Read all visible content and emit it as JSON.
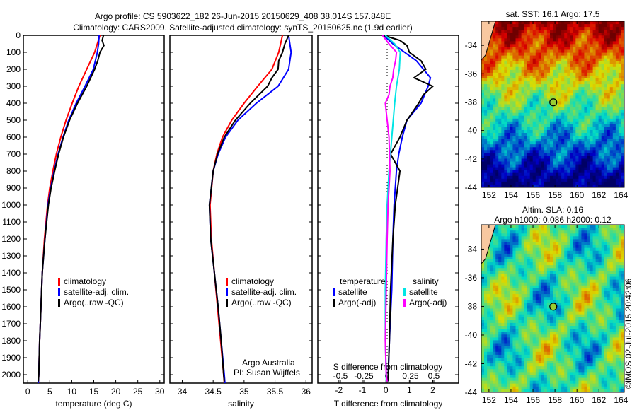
{
  "title": {
    "line1": "Argo profile: CS 5903622_182 26-Jun-2015 20150629_408 38.014S 157.848E",
    "line2": "Climatology: CARS2009. Satellite-adjusted climatology: synTS_20150625.nc (1.9d earlier)"
  },
  "footer": {
    "credit": "©IMOS 02-Jul-2015 20:42:06",
    "org": "Argo Australia",
    "pi": "PI: Susan Wijffels"
  },
  "colors": {
    "clim": "#ff0000",
    "sat": "#0000ff",
    "argo": "#000000",
    "sal_sat": "#00e5e5",
    "sal_argo": "#ff00ff"
  },
  "chart_data": [
    {
      "type": "line",
      "name": "temperature",
      "xlabel": "temperature (deg C)",
      "xlim": [
        -1,
        31
      ],
      "ylim": [
        0,
        2050
      ],
      "xticks": [
        0,
        5,
        10,
        15,
        20,
        25,
        30
      ],
      "yticks": [
        0,
        100,
        200,
        300,
        400,
        500,
        600,
        700,
        800,
        900,
        1000,
        1100,
        1200,
        1300,
        1400,
        1500,
        1600,
        1700,
        1800,
        1900,
        2000
      ],
      "legend": [
        "climatology",
        "satellite-adj. clim.",
        "Argo(..raw -QC)"
      ],
      "series": [
        {
          "name": "climatology",
          "color": "#ff0000",
          "depth": [
            0,
            100,
            200,
            300,
            400,
            500,
            600,
            700,
            800,
            900,
            1000,
            1200,
            1400,
            1600,
            1800,
            2000,
            2050
          ],
          "values": [
            16.4,
            15.2,
            13.4,
            11.6,
            10.1,
            8.7,
            7.5,
            6.5,
            5.7,
            5.0,
            4.5,
            3.8,
            3.3,
            3.0,
            2.7,
            2.5,
            2.4
          ]
        },
        {
          "name": "satellite-adj. clim.",
          "color": "#0000ff",
          "depth": [
            0,
            50,
            100,
            200,
            300,
            400,
            500,
            600,
            700,
            800,
            900,
            1000,
            1200,
            1400,
            1600,
            1800,
            2000,
            2050
          ],
          "values": [
            16.2,
            16.1,
            15.8,
            14.9,
            13.0,
            11.0,
            9.3,
            8.0,
            6.9,
            6.0,
            5.2,
            4.6,
            3.9,
            3.3,
            3.0,
            2.7,
            2.5,
            2.4
          ]
        },
        {
          "name": "Argo(..raw -QC)",
          "color": "#000000",
          "depth": [
            0,
            30,
            60,
            100,
            150,
            200,
            300,
            400,
            500,
            600,
            700,
            800,
            900,
            1000,
            1200,
            1400,
            1600,
            1800,
            2000,
            2040
          ],
          "values": [
            17.2,
            16.9,
            17.3,
            16.4,
            15.9,
            15.2,
            13.4,
            11.3,
            9.5,
            8.1,
            7.0,
            6.1,
            5.3,
            4.7,
            3.9,
            3.3,
            3.0,
            2.7,
            2.5,
            2.4
          ]
        }
      ]
    },
    {
      "type": "line",
      "name": "salinity",
      "xlabel": "salinity",
      "xlim": [
        33.8,
        36.1
      ],
      "ylim": [
        0,
        2050
      ],
      "xticks": [
        34,
        34.5,
        35,
        35.5,
        36
      ],
      "legend": [
        "climatology",
        "satellite-adj. clim.",
        "Argo(..raw -QC)"
      ],
      "series": [
        {
          "name": "climatology",
          "color": "#ff0000",
          "depth": [
            0,
            100,
            200,
            300,
            400,
            500,
            600,
            700,
            800,
            1000,
            1200,
            1400,
            1600,
            1800,
            2000,
            2050
          ],
          "values": [
            35.62,
            35.56,
            35.45,
            35.22,
            35.0,
            34.8,
            34.65,
            34.56,
            34.5,
            34.45,
            34.47,
            34.52,
            34.57,
            34.62,
            34.67,
            34.68
          ]
        },
        {
          "name": "satellite-adj. clim.",
          "color": "#0000ff",
          "depth": [
            0,
            100,
            200,
            300,
            400,
            500,
            600,
            700,
            800,
            1000,
            1200,
            1400,
            1600,
            1800,
            2000,
            2050
          ],
          "values": [
            35.72,
            35.76,
            35.72,
            35.55,
            35.2,
            34.9,
            34.7,
            34.58,
            34.5,
            34.44,
            34.46,
            34.52,
            34.58,
            34.63,
            34.68,
            34.69
          ]
        },
        {
          "name": "Argo(..raw -QC)",
          "color": "#000000",
          "depth": [
            0,
            50,
            100,
            150,
            200,
            250,
            300,
            400,
            500,
            600,
            700,
            800,
            1000,
            1200,
            1400,
            1600,
            1800,
            2000,
            2040
          ],
          "values": [
            35.72,
            35.66,
            35.62,
            35.56,
            35.55,
            35.45,
            35.38,
            35.1,
            34.86,
            34.68,
            34.57,
            34.5,
            34.44,
            34.46,
            34.52,
            34.58,
            34.63,
            34.67,
            34.68
          ]
        }
      ]
    },
    {
      "type": "line",
      "name": "differences",
      "xlabel": "T difference from climatology",
      "xlim": [
        -2.9,
        3.1
      ],
      "xticks": [
        -2,
        -1,
        0,
        1,
        2
      ],
      "x2label": "S difference from climatology",
      "x2lim": [
        -0.5,
        0.5
      ],
      "x2ticks": [
        -0.5,
        -0.25,
        0,
        0.25,
        0.5
      ],
      "legend_titles": [
        "temperature",
        "salinity"
      ],
      "legend": [
        "satellite",
        "Argo(-adj)",
        "satellite",
        "Argo(-adj)"
      ],
      "series": [
        {
          "name": "T satellite",
          "axis": "T",
          "color": "#0000ff",
          "depth": [
            0,
            50,
            100,
            150,
            200,
            250,
            300,
            400,
            500,
            600,
            700,
            800,
            1000,
            1200,
            1500,
            1800,
            2000,
            2040
          ],
          "values": [
            -0.1,
            0.3,
            0.8,
            1.3,
            1.6,
            1.9,
            1.8,
            1.5,
            0.9,
            0.7,
            0.55,
            0.45,
            0.35,
            0.3,
            0.25,
            0.15,
            0.1,
            0.08
          ]
        },
        {
          "name": "T Argo(-adj)",
          "axis": "T",
          "color": "#000000",
          "depth": [
            0,
            30,
            60,
            100,
            150,
            200,
            250,
            300,
            350,
            400,
            500,
            600,
            700,
            800,
            1000,
            1200,
            1500,
            1800,
            2000,
            2040
          ],
          "values": [
            -0.1,
            0.6,
            0.9,
            1.0,
            1.5,
            1.7,
            1.2,
            2.0,
            1.6,
            1.4,
            0.9,
            0.6,
            0.2,
            0.6,
            0.4,
            0.3,
            0.2,
            0.15,
            0.1,
            0.08
          ]
        },
        {
          "name": "S satellite",
          "axis": "S",
          "color": "#00e5e5",
          "depth": [
            0,
            50,
            100,
            200,
            300,
            400,
            600,
            800,
            1000,
            1200,
            1500,
            1800,
            2000,
            2040
          ],
          "values": [
            -0.02,
            0.08,
            0.14,
            0.13,
            0.1,
            0.08,
            0.05,
            0.02,
            0.0,
            -0.01,
            -0.02,
            -0.02,
            -0.01,
            -0.01
          ]
        },
        {
          "name": "S Argo(-adj)",
          "axis": "S",
          "color": "#ff00ff",
          "depth": [
            0,
            50,
            100,
            150,
            200,
            250,
            300,
            350,
            400,
            500,
            600,
            800,
            1000,
            1200,
            1500,
            1800,
            2000,
            2040
          ],
          "values": [
            -0.05,
            0.02,
            0.1,
            0.09,
            0.07,
            0.06,
            0.03,
            0.02,
            -0.02,
            0.0,
            0.02,
            0.03,
            0.01,
            0.0,
            -0.01,
            -0.02,
            -0.01,
            0.0
          ]
        }
      ]
    },
    {
      "type": "heatmap",
      "name": "sst-map",
      "title": "sat. SST: 16.1  Argo: 17.5",
      "xticks": [
        152,
        154,
        156,
        158,
        160,
        162,
        164
      ],
      "yticks": [
        -34,
        -36,
        -38,
        -40,
        -42,
        -44
      ],
      "xlim": [
        151.3,
        164.3
      ],
      "ylim": [
        -44,
        -32.3
      ],
      "marker": {
        "lon": 157.848,
        "lat": -38.014
      }
    },
    {
      "type": "heatmap",
      "name": "sla-map",
      "title": "Altim. SLA: 0.16",
      "subtitle": "Argo h1000: 0.086 h2000: 0.12",
      "xticks": [
        152,
        154,
        156,
        158,
        160,
        162,
        164
      ],
      "yticks": [
        -34,
        -36,
        -38,
        -40,
        -42,
        -44
      ],
      "xlim": [
        151.3,
        164.3
      ],
      "ylim": [
        -44,
        -32.3
      ],
      "marker": {
        "lon": 157.848,
        "lat": -38.014
      }
    }
  ]
}
